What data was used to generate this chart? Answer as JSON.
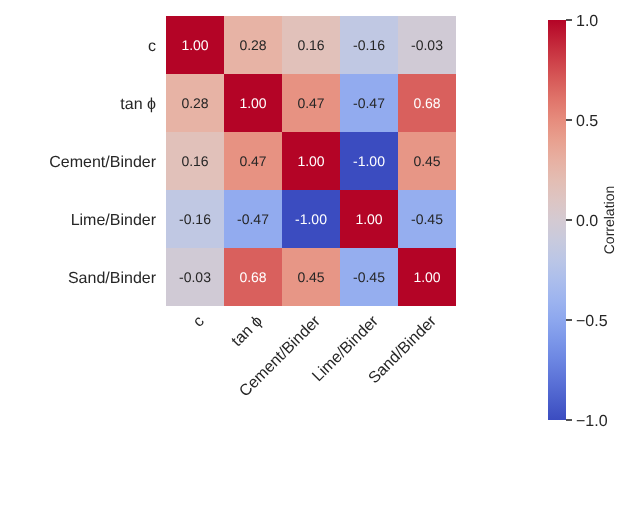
{
  "chart_data": {
    "type": "heatmap",
    "categories": [
      "c",
      "tan ϕ",
      "Cement/Binder",
      "Lime/Binder",
      "Sand/Binder"
    ],
    "y_categories": [
      "c",
      "tan ϕ",
      "Cement/Binder",
      "Lime/Binder",
      "Sand/Binder"
    ],
    "cells": [
      [
        1.0,
        0.28,
        0.16,
        -0.16,
        -0.03
      ],
      [
        0.28,
        1.0,
        0.47,
        -0.47,
        0.68
      ],
      [
        0.16,
        0.47,
        1.0,
        -1.0,
        0.45
      ],
      [
        -0.16,
        -0.47,
        -1.0,
        1.0,
        -0.45
      ],
      [
        -0.03,
        0.68,
        0.45,
        -0.45,
        1.0
      ]
    ],
    "cell_labels": [
      [
        "1.00",
        "0.28",
        "0.16",
        "-0.16",
        "-0.03"
      ],
      [
        "0.28",
        "1.00",
        "0.47",
        "-0.47",
        "0.68"
      ],
      [
        "0.16",
        "0.47",
        "1.00",
        "-1.00",
        "0.45"
      ],
      [
        "-0.16",
        "-0.47",
        "-1.00",
        "1.00",
        "-0.45"
      ],
      [
        "-0.03",
        "0.68",
        "0.45",
        "-0.45",
        "1.00"
      ]
    ],
    "clim": [
      -1,
      1
    ],
    "cticks": [
      {
        "value": 1,
        "label": "1.0"
      },
      {
        "value": 0.5,
        "label": "0.5"
      },
      {
        "value": 0,
        "label": "0.0"
      },
      {
        "value": -0.5,
        "label": "−0.5"
      },
      {
        "value": -1,
        "label": "−1.0"
      }
    ],
    "clabel": "Correlation"
  }
}
